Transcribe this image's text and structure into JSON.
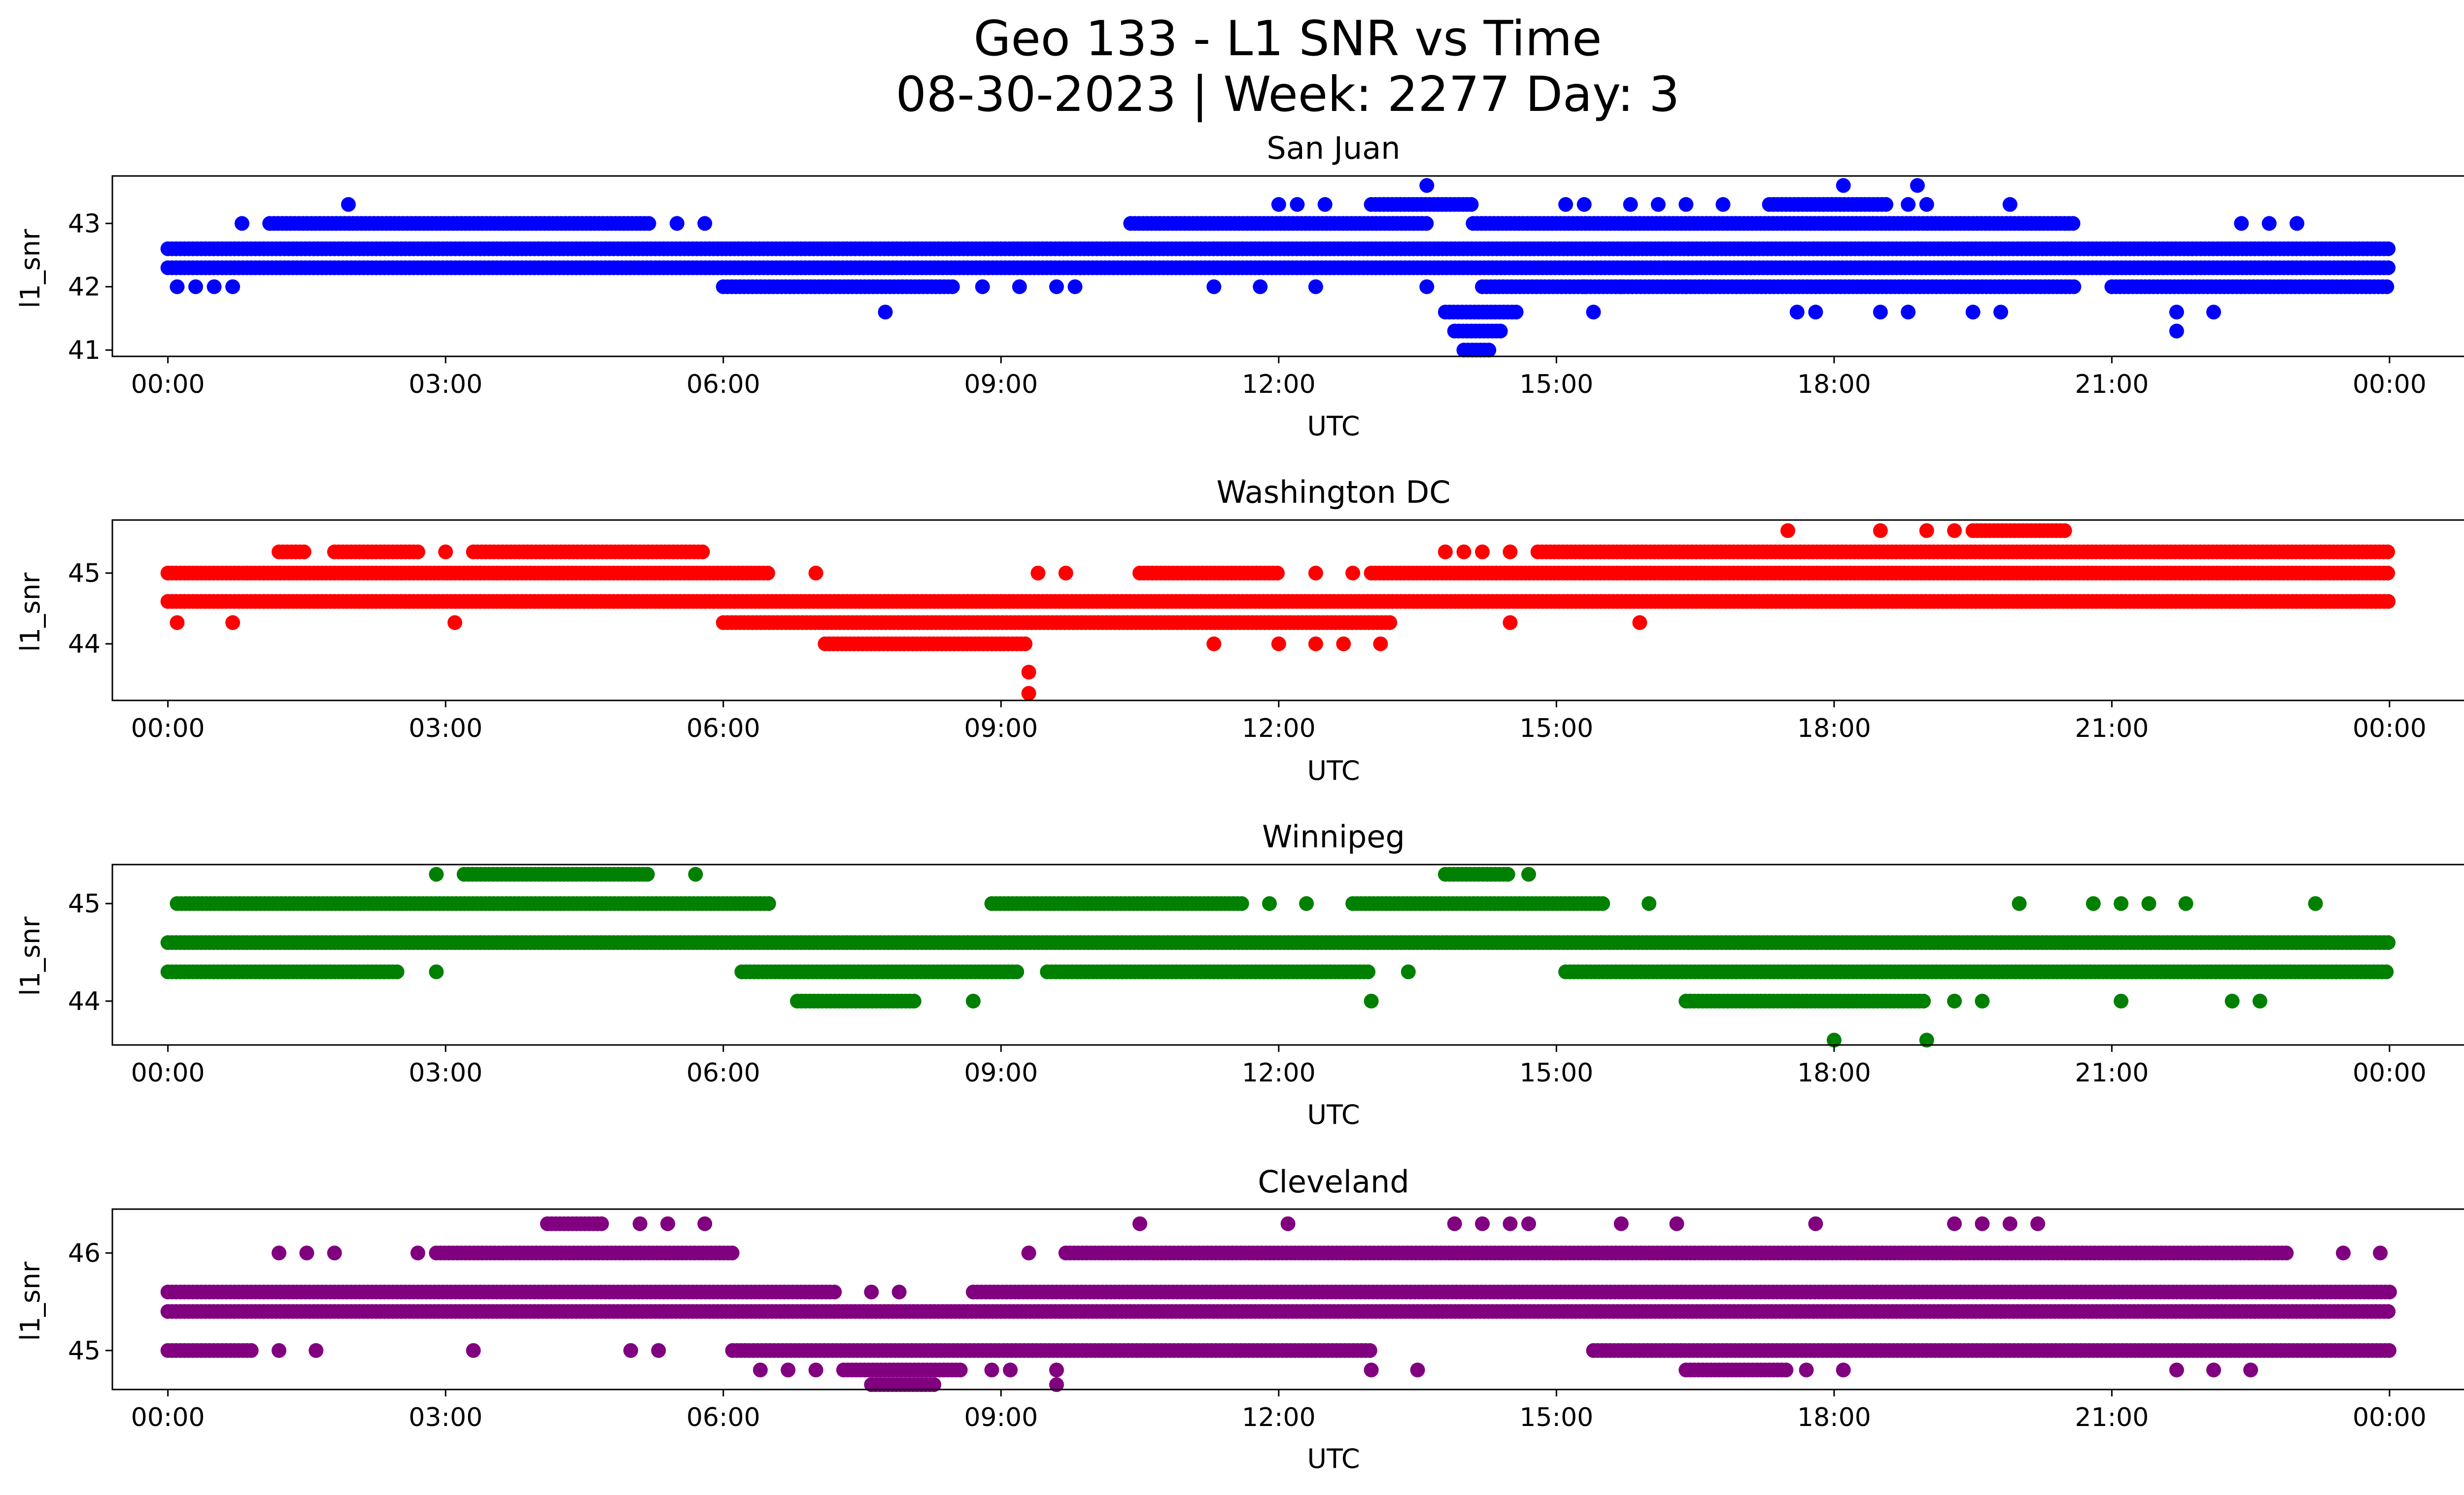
{
  "figure": {
    "title_line1": "Geo 133 - L1 SNR vs Time",
    "title_line2": "08-30-2023 | Week: 2277 Day: 3"
  },
  "chart_data": [
    {
      "type": "scatter",
      "title": "San Juan",
      "xlabel": "UTC",
      "ylabel": "l1_snr",
      "color": "#0000ff",
      "xlim_hours": [
        -0.6,
        25.8
      ],
      "ylim": [
        40.9,
        43.75
      ],
      "yticks": [
        41,
        42,
        43
      ],
      "xtick_labels": [
        "00:00",
        "03:00",
        "06:00",
        "09:00",
        "12:00",
        "15:00",
        "18:00",
        "21:00",
        "00:00"
      ],
      "series": [
        {
          "y": 42.3,
          "segments": [
            [
              0.0,
              24.0
            ]
          ]
        },
        {
          "y": 42.6,
          "segments": [
            [
              0.0,
              24.0
            ]
          ]
        },
        {
          "y": 43.0,
          "segments": [
            [
              1.1,
              5.2
            ],
            [
              10.4,
              13.6
            ],
            [
              14.1,
              20.6
            ]
          ],
          "points": [
            0.8,
            5.5,
            5.8,
            22.4,
            22.7,
            23.0
          ]
        },
        {
          "y": 42.0,
          "segments": [
            [
              6.0,
              8.5
            ],
            [
              14.2,
              20.6
            ],
            [
              21.0,
              24.0
            ]
          ],
          "points": [
            0.1,
            0.3,
            0.5,
            0.7,
            8.8,
            9.2,
            9.6,
            9.8,
            11.3,
            11.8,
            12.4,
            13.6,
            15.3,
            15.7,
            16.4
          ]
        },
        {
          "y": 43.3,
          "segments": [
            [
              13.0,
              14.1
            ],
            [
              17.3,
              18.6
            ]
          ],
          "points": [
            1.95,
            12.0,
            12.2,
            12.5,
            15.1,
            15.3,
            15.8,
            16.1,
            16.4,
            16.8,
            18.8,
            19.0,
            19.9
          ]
        },
        {
          "y": 41.6,
          "segments": [
            [
              13.8,
              14.6
            ]
          ],
          "points": [
            7.75,
            15.4,
            17.6,
            17.8,
            18.5,
            18.8,
            19.5,
            19.8,
            21.7,
            22.1
          ]
        },
        {
          "y": 41.3,
          "segments": [
            [
              13.9,
              14.4
            ]
          ],
          "points": [
            21.7
          ]
        },
        {
          "y": 41.0,
          "segments": [
            [
              14.0,
              14.3
            ]
          ]
        },
        {
          "y": 43.6,
          "points": [
            13.6,
            18.1,
            18.9
          ]
        }
      ]
    },
    {
      "type": "scatter",
      "title": "Washington DC",
      "xlabel": "UTC",
      "ylabel": "l1_snr",
      "color": "#ff0000",
      "xlim_hours": [
        -0.6,
        25.8
      ],
      "ylim": [
        43.2,
        45.75
      ],
      "yticks": [
        44,
        45
      ],
      "xtick_labels": [
        "00:00",
        "03:00",
        "06:00",
        "09:00",
        "12:00",
        "15:00",
        "18:00",
        "21:00",
        "00:00"
      ],
      "series": [
        {
          "y": 44.6,
          "segments": [
            [
              0.0,
              24.0
            ]
          ]
        },
        {
          "y": 45.0,
          "segments": [
            [
              0.0,
              6.5
            ],
            [
              10.5,
              12.0
            ],
            [
              13.0,
              24.0
            ]
          ],
          "points": [
            7.0,
            9.4,
            9.7,
            12.4,
            12.8
          ]
        },
        {
          "y": 45.3,
          "segments": [
            [
              1.2,
              1.5
            ],
            [
              1.8,
              2.7
            ],
            [
              3.3,
              5.8
            ],
            [
              14.8,
              24.0
            ]
          ],
          "points": [
            3.0,
            13.8,
            14.0,
            14.2,
            14.5
          ]
        },
        {
          "y": 44.3,
          "segments": [
            [
              6.0,
              13.2
            ]
          ],
          "points": [
            0.1,
            0.7,
            3.1,
            14.5,
            15.9
          ]
        },
        {
          "y": 44.0,
          "segments": [
            [
              7.1,
              9.3
            ]
          ],
          "points": [
            11.3,
            12.0,
            12.4,
            12.7,
            13.1
          ]
        },
        {
          "y": 45.6,
          "segments": [
            [
              19.5,
              20.5
            ]
          ],
          "points": [
            17.5,
            18.5,
            19.0,
            19.3
          ]
        },
        {
          "y": 43.6,
          "points": [
            9.3
          ]
        },
        {
          "y": 43.3,
          "points": [
            9.3
          ]
        }
      ]
    },
    {
      "type": "scatter",
      "title": "Winnipeg",
      "xlabel": "UTC",
      "ylabel": "l1_snr",
      "color": "#008000",
      "xlim_hours": [
        -0.6,
        25.8
      ],
      "ylim": [
        43.55,
        45.4
      ],
      "yticks": [
        44,
        45
      ],
      "xtick_labels": [
        "00:00",
        "03:00",
        "06:00",
        "09:00",
        "12:00",
        "15:00",
        "18:00",
        "21:00",
        "00:00"
      ],
      "series": [
        {
          "y": 44.6,
          "segments": [
            [
              0.0,
              24.0
            ]
          ]
        },
        {
          "y": 45.0,
          "segments": [
            [
              0.1,
              6.5
            ],
            [
              8.9,
              11.6
            ],
            [
              12.8,
              15.5
            ]
          ],
          "points": [
            11.9,
            12.3,
            16.0,
            20.0,
            20.8,
            21.1,
            21.4,
            21.8,
            23.2
          ]
        },
        {
          "y": 44.3,
          "segments": [
            [
              0.0,
              2.5
            ],
            [
              6.2,
              9.2
            ],
            [
              9.5,
              13.0
            ],
            [
              15.1,
              24.0
            ]
          ],
          "points": [
            2.9,
            13.4
          ]
        },
        {
          "y": 45.3,
          "segments": [
            [
              3.2,
              5.2
            ],
            [
              13.8,
              14.5
            ]
          ],
          "points": [
            2.9,
            5.7,
            14.7
          ]
        },
        {
          "y": 44.0,
          "segments": [
            [
              6.8,
              8.1
            ],
            [
              16.4,
              19.0
            ]
          ],
          "points": [
            8.7,
            13.0,
            19.3,
            19.6,
            21.1,
            22.3,
            22.6
          ]
        },
        {
          "y": 43.6,
          "points": [
            18.0,
            19.0
          ]
        }
      ]
    },
    {
      "type": "scatter",
      "title": "Cleveland",
      "xlabel": "UTC",
      "ylabel": "l1_snr",
      "color": "#800080",
      "xlim_hours": [
        -0.6,
        25.8
      ],
      "ylim": [
        44.6,
        46.45
      ],
      "yticks": [
        45,
        46
      ],
      "xtick_labels": [
        "00:00",
        "03:00",
        "06:00",
        "09:00",
        "12:00",
        "15:00",
        "18:00",
        "21:00",
        "00:00"
      ],
      "series": [
        {
          "y": 45.4,
          "segments": [
            [
              0.0,
              24.0
            ]
          ]
        },
        {
          "y": 45.6,
          "segments": [
            [
              0.0,
              7.2
            ],
            [
              8.7,
              24.0
            ]
          ],
          "points": [
            7.6,
            7.9
          ]
        },
        {
          "y": 46.0,
          "segments": [
            [
              2.9,
              6.1
            ],
            [
              9.7,
              22.9
            ]
          ],
          "points": [
            1.2,
            1.5,
            1.8,
            2.7,
            9.3,
            23.5,
            23.9
          ]
        },
        {
          "y": 45.0,
          "segments": [
            [
              0.0,
              0.9
            ],
            [
              6.1,
              13.0
            ],
            [
              15.4,
              24.0
            ]
          ],
          "points": [
            1.2,
            1.6,
            3.3,
            5.0,
            5.3
          ]
        },
        {
          "y": 46.3,
          "segments": [
            [
              4.1,
              4.7
            ]
          ],
          "points": [
            5.1,
            5.4,
            5.8,
            10.5,
            12.1,
            13.9,
            14.2,
            14.5,
            14.7,
            15.7,
            16.3,
            17.8,
            19.3,
            19.6,
            19.9,
            20.2
          ]
        },
        {
          "y": 44.8,
          "segments": [
            [
              7.3,
              8.6
            ],
            [
              16.4,
              17.5
            ]
          ],
          "points": [
            6.4,
            6.7,
            7.0,
            8.9,
            9.1,
            9.6,
            13.0,
            13.5,
            17.7,
            18.1,
            21.7,
            22.1,
            22.5
          ]
        },
        {
          "y": 44.65,
          "segments": [
            [
              7.6,
              8.3
            ]
          ],
          "points": [
            9.6
          ]
        }
      ]
    }
  ]
}
